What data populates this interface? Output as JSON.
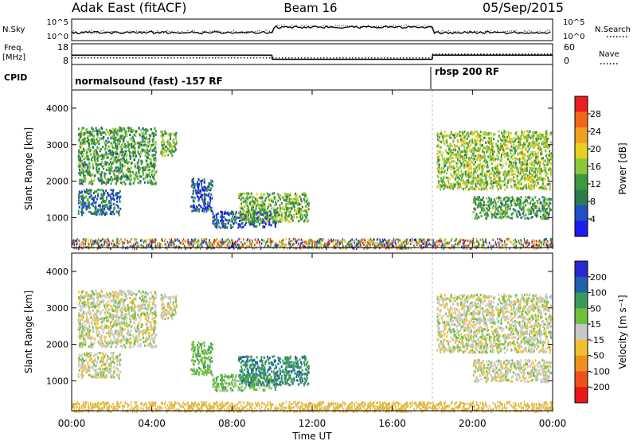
{
  "header": {
    "station": "Adak East (fitACF)",
    "beam": "Beam 16",
    "date": "05/Sep/2015"
  },
  "colors": {
    "power_scale": [
      "#1c1cf0",
      "#2050c8",
      "#2d7b4d",
      "#3a9a3c",
      "#8cc83a",
      "#e8d020",
      "#f0a020",
      "#f06818",
      "#e82020"
    ],
    "velocity_scale": [
      "#e81818",
      "#f05018",
      "#f09020",
      "#f0c030",
      "#c8c8c8",
      "#70c040",
      "#3a9a58",
      "#2060b0",
      "#2828d0"
    ],
    "noise": "#e2b840"
  },
  "left_labels": {
    "nsky": "N.Sky",
    "freq": "Freq.",
    "mhz": "[MHz]",
    "cpid": "CPID"
  },
  "right_labels": {
    "nsearch": "N.Search",
    "nave": "Nave"
  },
  "cpid_labels": {
    "first": "normalsound (fast) -157 RF",
    "second": "rbsp 200 RF"
  },
  "x_axis": {
    "title": "Time UT",
    "ticks": [
      "00:00",
      "04:00",
      "08:00",
      "12:00",
      "16:00",
      "20:00",
      "00:00"
    ]
  },
  "power_panel": {
    "ylabel": "Slant Range [km]",
    "yticks": [
      "1000",
      "2000",
      "3000",
      "4000"
    ],
    "colorbar_label": "Power [dB]",
    "colorbar_ticks": [
      "4",
      "8",
      "12",
      "16",
      "20",
      "24",
      "28"
    ]
  },
  "velocity_panel": {
    "ylabel": "Slant Range [km]",
    "yticks": [
      "1000",
      "2000",
      "3000",
      "4000"
    ],
    "colorbar_label": "Velocity [m s⁻¹]",
    "colorbar_ticks": [
      "200",
      "100",
      "50",
      "15",
      "-15",
      "-50",
      "-100",
      "-200"
    ]
  },
  "noise_scale": {
    "nsky_ticks": [
      "10^5",
      "10^0"
    ],
    "nsearch_ticks": [
      "10^5",
      "10^0"
    ],
    "freq_ticks": [
      "18",
      "8"
    ],
    "nave_ticks": [
      "60",
      "0"
    ]
  },
  "chart_data": {
    "type": "heatmap",
    "title": "Adak East (fitACF) Beam 16 05/Sep/2015",
    "xlabel": "Time UT",
    "ylabel": "Slant Range [km]",
    "x_range_hours": [
      0,
      24
    ],
    "y_range_km": [
      180,
      4500
    ],
    "grid": false,
    "cpid_switch_hour": 18,
    "frequency_mhz": [
      {
        "from_hour": 0,
        "to_hour": 10,
        "value": 12.5
      },
      {
        "from_hour": 10,
        "to_hour": 18,
        "value": 10.5
      },
      {
        "from_hour": 18,
        "to_hour": 24,
        "value": 12.5
      }
    ],
    "nave": [
      {
        "from_hour": 0,
        "to_hour": 18,
        "value": 19
      },
      {
        "from_hour": 18,
        "to_hour": 24,
        "value": 30
      }
    ],
    "backscatter_regions": [
      {
        "start_hour": 0.3,
        "end_hour": 4.2,
        "range_start_km": 1950,
        "range_end_km": 3500,
        "power_db": 12,
        "velocity_ms": 0
      },
      {
        "start_hour": 0.3,
        "end_hour": 2.4,
        "range_start_km": 1100,
        "range_end_km": 1800,
        "power_db": 8,
        "velocity_ms": 0
      },
      {
        "start_hour": 4.4,
        "end_hour": 5.2,
        "range_start_km": 2700,
        "range_end_km": 3400,
        "power_db": 14,
        "velocity_ms": 0
      },
      {
        "start_hour": 5.9,
        "end_hour": 7.0,
        "range_start_km": 1200,
        "range_end_km": 2100,
        "power_db": 6,
        "velocity_ms": 40
      },
      {
        "start_hour": 7.0,
        "end_hour": 10.2,
        "range_start_km": 750,
        "range_end_km": 1200,
        "power_db": 6,
        "velocity_ms": 30
      },
      {
        "start_hour": 8.3,
        "end_hour": 11.8,
        "range_start_km": 900,
        "range_end_km": 1700,
        "power_db": 14,
        "velocity_ms": 90
      },
      {
        "start_hour": 18.2,
        "end_hour": 23.9,
        "range_start_km": 1800,
        "range_end_km": 3400,
        "power_db": 16,
        "velocity_ms": 0
      },
      {
        "start_hour": 20.0,
        "end_hour": 23.9,
        "range_start_km": 1000,
        "range_end_km": 1600,
        "power_db": 12,
        "velocity_ms": 0
      }
    ],
    "near_range_noise_km": [
      180,
      450
    ]
  }
}
